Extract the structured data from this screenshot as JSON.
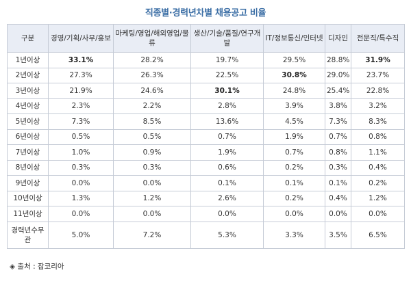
{
  "title": "직종별·경력년차별 채용공고 비율",
  "headers": [
    "구분",
    "경영/기획/사무/홍보",
    "마케팅/영업/해외영업/물류",
    "생산/기술/품질/연구개발",
    "IT/정보통신/인터넷",
    "디자인",
    "전문직/특수직"
  ],
  "rows": [
    {
      "label": "1년이상",
      "values": [
        "33.1%",
        "28.2%",
        "19.7%",
        "29.5%",
        "28.8%",
        "31.9%"
      ],
      "bold": [
        0,
        5
      ]
    },
    {
      "label": "2년이상",
      "values": [
        "27.3%",
        "26.3%",
        "22.5%",
        "30.8%",
        "29.0%",
        "23.7%"
      ],
      "bold": [
        3
      ]
    },
    {
      "label": "3년이상",
      "values": [
        "21.9%",
        "24.6%",
        "30.1%",
        "24.8%",
        "25.4%",
        "22.8%"
      ],
      "bold": [
        2
      ]
    },
    {
      "label": "4년이상",
      "values": [
        "2.3%",
        "2.2%",
        "2.8%",
        "3.9%",
        "3.8%",
        "3.2%"
      ],
      "bold": []
    },
    {
      "label": "5년이상",
      "values": [
        "7.3%",
        "8.5%",
        "13.6%",
        "4.5%",
        "7.3%",
        "8.3%"
      ],
      "bold": []
    },
    {
      "label": "6년이상",
      "values": [
        "0.5%",
        "0.5%",
        "0.7%",
        "1.9%",
        "0.7%",
        "0.8%"
      ],
      "bold": []
    },
    {
      "label": "7년이상",
      "values": [
        "1.0%",
        "0.9%",
        "1.9%",
        "0.7%",
        "0.8%",
        "1.1%"
      ],
      "bold": []
    },
    {
      "label": "8년이상",
      "values": [
        "0.3%",
        "0.3%",
        "0.6%",
        "0.2%",
        "0.3%",
        "0.4%"
      ],
      "bold": []
    },
    {
      "label": "9년이상",
      "values": [
        "0.0%",
        "0.0%",
        "0.1%",
        "0.1%",
        "0.1%",
        "0.2%"
      ],
      "bold": []
    },
    {
      "label": "10년이상",
      "values": [
        "1.3%",
        "1.2%",
        "2.6%",
        "0.2%",
        "0.4%",
        "1.2%"
      ],
      "bold": []
    },
    {
      "label": "11년이상",
      "values": [
        "0.0%",
        "0.0%",
        "0.0%",
        "0.0%",
        "0.0%",
        "0.0%"
      ],
      "bold": []
    },
    {
      "label": "경력년수무관",
      "values": [
        "5.0%",
        "7.2%",
        "5.3%",
        "3.3%",
        "3.5%",
        "6.5%"
      ],
      "bold": []
    }
  ],
  "source": "◈ 출처 : 잡코리아"
}
